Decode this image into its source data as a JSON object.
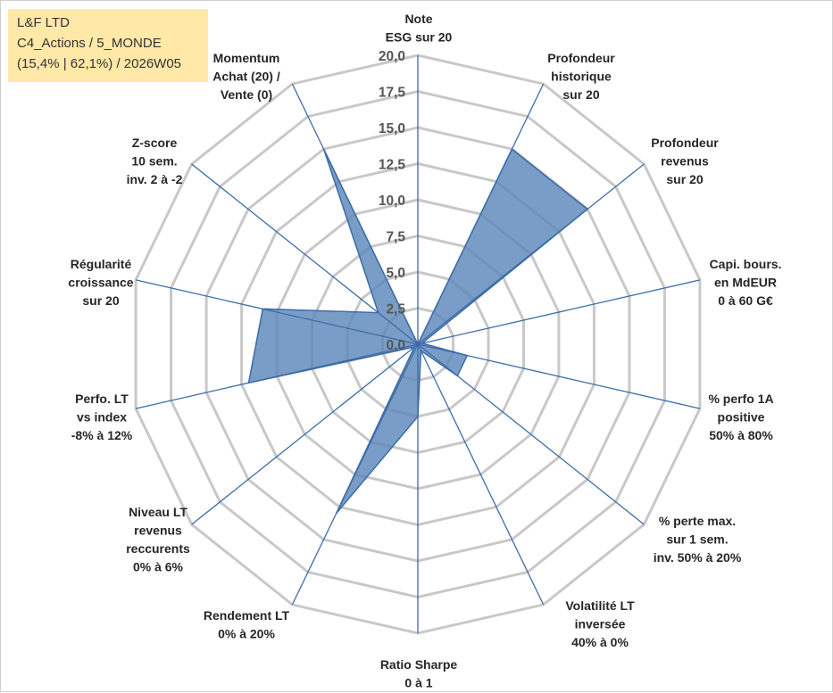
{
  "info_box": {
    "line1": "L&F LTD",
    "line2": "C4_Actions / 5_MONDE",
    "line3": "(15,4% | 62,1%) / 2026W05"
  },
  "chart_data": {
    "type": "radar",
    "title": "",
    "rmin": 0,
    "rmax": 20,
    "ticks": [
      0,
      2.5,
      5,
      7.5,
      10,
      12.5,
      15,
      17.5,
      20
    ],
    "tick_labels": [
      "0,0",
      "2,5",
      "5,0",
      "7,5",
      "10,0",
      "12,5",
      "15,0",
      "17,5",
      "20,0"
    ],
    "axes": [
      {
        "label": [
          "Note",
          "ESG sur 20"
        ],
        "value": 0
      },
      {
        "label": [
          "Profondeur",
          "historique",
          "sur 20"
        ],
        "value": 15
      },
      {
        "label": [
          "Profondeur",
          "revenus",
          "sur 20"
        ],
        "value": 15
      },
      {
        "label": [
          "Capi. bours.",
          "en MdEUR",
          "0 à 60 G€"
        ],
        "value": 0.3
      },
      {
        "label": [
          "% perfo 1A",
          "positive",
          "50% à 80%"
        ],
        "value": 3.5
      },
      {
        "label": [
          "% perte max.",
          "sur 1 sem.",
          "inv. 50% à 20%"
        ],
        "value": 3.5
      },
      {
        "label": [
          "Volatilité LT",
          "inversée",
          "40% à 0%"
        ],
        "value": 0.5
      },
      {
        "label": [
          "Ratio Sharpe",
          "0 à 1"
        ],
        "value": 5
      },
      {
        "label": [
          "Rendement LT",
          "0% à 20%"
        ],
        "value": 13
      },
      {
        "label": [
          "Niveau LT",
          "revenus",
          "reccurents",
          "0% à 6%"
        ],
        "value": 0.3
      },
      {
        "label": [
          "Perfo. LT",
          "vs index",
          "-8% à 12%"
        ],
        "value": 12
      },
      {
        "label": [
          "Régularité",
          "croissance",
          "sur 20"
        ],
        "value": 11
      },
      {
        "label": [
          "Z-score",
          "10 sem.",
          "inv. 2 à -2"
        ],
        "value": 3.5
      },
      {
        "label": [
          "Momentum",
          "Achat (20) /",
          "Vente (0)"
        ],
        "value": 15
      }
    ],
    "series": [
      {
        "name": "L&F LTD",
        "fill": "#5b87ba",
        "stroke": "#3d6ca8"
      }
    ],
    "grid_color": "#c8c8c8",
    "spoke_color": "#3d6ca8"
  }
}
